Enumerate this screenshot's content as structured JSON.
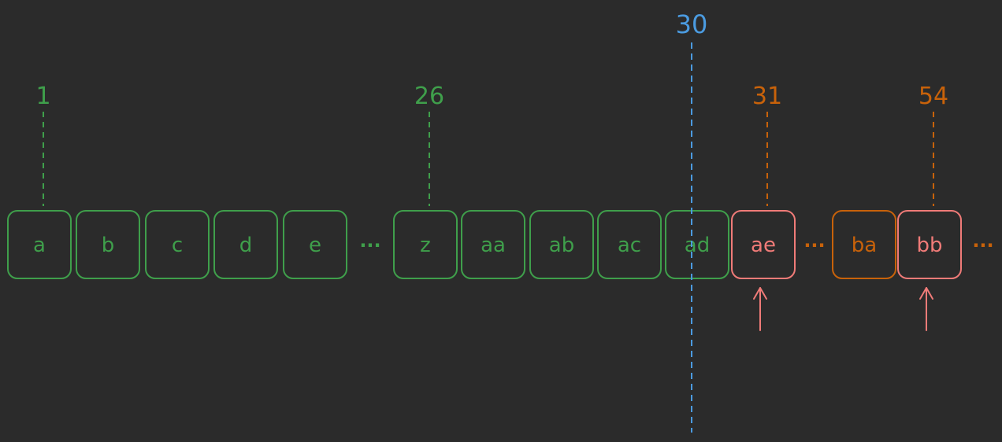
{
  "colors": {
    "background": "#2b2b2b",
    "green": "#3f9f4b",
    "orange": "#c8620a",
    "pink": "#f07b78",
    "blue": "#4b9be0"
  },
  "cells": [
    {
      "label": "a",
      "color": "green"
    },
    {
      "label": "b",
      "color": "green"
    },
    {
      "label": "c",
      "color": "green"
    },
    {
      "label": "d",
      "color": "green"
    },
    {
      "label": "e",
      "color": "green"
    },
    {
      "label": "z",
      "color": "green"
    },
    {
      "label": "aa",
      "color": "green"
    },
    {
      "label": "ab",
      "color": "green"
    },
    {
      "label": "ac",
      "color": "green"
    },
    {
      "label": "ad",
      "color": "green"
    },
    {
      "label": "ae",
      "color": "pink"
    },
    {
      "label": "ba",
      "color": "orange"
    },
    {
      "label": "bb",
      "color": "pink"
    }
  ],
  "ellipsis": "···",
  "markers": [
    {
      "label": "1",
      "color": "green",
      "cell": 0
    },
    {
      "label": "26",
      "color": "green",
      "cell": 5
    },
    {
      "label": "31",
      "color": "orange",
      "cell": 10
    },
    {
      "label": "54",
      "color": "orange",
      "cell": 12
    }
  ],
  "cutoff": {
    "label": "30",
    "color": "blue"
  },
  "arrows": [
    {
      "cell": 10,
      "color": "pink"
    },
    {
      "cell": 12,
      "color": "pink"
    }
  ]
}
